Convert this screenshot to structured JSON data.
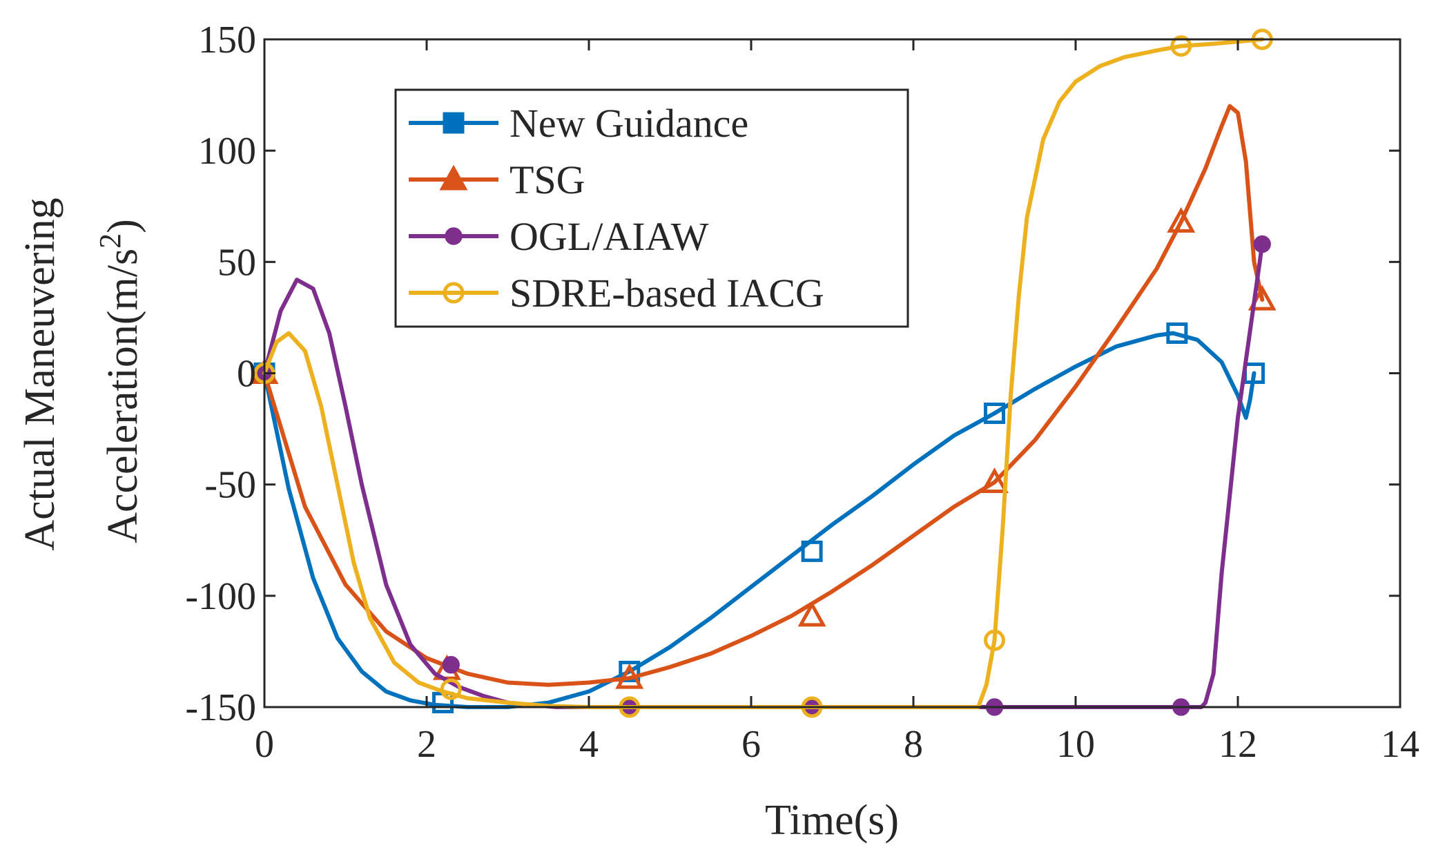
{
  "chart_data": {
    "type": "line",
    "title": "",
    "xlabel": "Time(s)",
    "ylabel_line1": "Actual Maneuvering",
    "ylabel_line2": "Acceleration(m/s",
    "ylabel_sup": "2",
    "ylabel_close": ")",
    "xlim": [
      0,
      14
    ],
    "ylim": [
      -150,
      150
    ],
    "xticks": [
      0,
      2,
      4,
      6,
      8,
      10,
      12,
      14
    ],
    "yticks": [
      150,
      100,
      50,
      0,
      -50,
      -100,
      -150
    ],
    "xtick_labels": [
      "0",
      "2",
      "4",
      "6",
      "8",
      "10",
      "12",
      "14"
    ],
    "ytick_labels": [
      "150",
      "100",
      "50",
      "0",
      "-50",
      "-100",
      "-150"
    ],
    "legend_position": "upper-left",
    "series": [
      {
        "name": "New Guidance",
        "color": "#0072BD",
        "marker": "square",
        "x": [
          0,
          0.3,
          0.6,
          0.9,
          1.2,
          1.5,
          1.8,
          2.1,
          2.5,
          3.0,
          3.5,
          4.0,
          4.5,
          5.0,
          5.5,
          6.0,
          6.5,
          7.0,
          7.5,
          8.0,
          8.5,
          9.0,
          9.5,
          10.0,
          10.5,
          11.0,
          11.2,
          11.5,
          11.8,
          12.0,
          12.1,
          12.15,
          12.2
        ],
        "y": [
          0,
          -52,
          -92,
          -119,
          -134,
          -143,
          -147,
          -149,
          -150,
          -150,
          -148,
          -143,
          -134,
          -123,
          -110,
          -96,
          -82,
          -68,
          -55,
          -41,
          -28,
          -18,
          -7,
          3,
          12,
          17,
          18,
          15,
          5,
          -10,
          -20,
          -12,
          0
        ],
        "marker_x": [
          0,
          2.2,
          4.5,
          6.75,
          9.0,
          11.25,
          12.2
        ],
        "marker_y": [
          0,
          -148,
          -134,
          -80,
          -18,
          18,
          0
        ]
      },
      {
        "name": "TSG",
        "color": "#D95319",
        "marker": "triangle",
        "x": [
          0,
          0.5,
          1.0,
          1.5,
          2.0,
          2.5,
          3.0,
          3.5,
          4.0,
          4.5,
          5.0,
          5.5,
          6.0,
          6.5,
          7.0,
          7.5,
          8.0,
          8.5,
          9.0,
          9.5,
          10.0,
          10.5,
          11.0,
          11.3,
          11.6,
          11.8,
          11.9,
          12.0,
          12.1,
          12.2,
          12.3
        ],
        "y": [
          0,
          -60,
          -95,
          -116,
          -128,
          -135,
          -139,
          -140,
          -139,
          -137,
          -132,
          -126,
          -118,
          -109,
          -98,
          -86,
          -73,
          -60,
          -49,
          -30,
          -6,
          20,
          47,
          68,
          92,
          111,
          120,
          117,
          95,
          50,
          33
        ],
        "marker_x": [
          0,
          2.25,
          4.5,
          6.75,
          9.0,
          11.3,
          12.3
        ],
        "marker_y": [
          0,
          -133,
          -137,
          -109,
          -49,
          68,
          33
        ]
      },
      {
        "name": "OGL/AIAW",
        "color": "#7E2F8E",
        "marker": "dot",
        "x": [
          0,
          0.2,
          0.4,
          0.6,
          0.8,
          1.0,
          1.2,
          1.5,
          1.8,
          2.1,
          2.4,
          2.7,
          3.0,
          3.3,
          3.6,
          4.0,
          4.5,
          5.0,
          6.0,
          7.0,
          8.0,
          9.0,
          10.0,
          11.0,
          11.3,
          11.55,
          11.6,
          11.7,
          11.8,
          12.0,
          12.3
        ],
        "y": [
          0,
          28,
          42,
          38,
          18,
          -15,
          -50,
          -95,
          -122,
          -135,
          -141,
          -145,
          -148,
          -149,
          -150,
          -150,
          -150,
          -150,
          -150,
          -150,
          -150,
          -150,
          -150,
          -150,
          -150,
          -150,
          -148,
          -135,
          -90,
          -20,
          58
        ],
        "marker_x": [
          0,
          2.3,
          4.5,
          6.75,
          9.0,
          11.3,
          12.3
        ],
        "marker_y": [
          0,
          -131,
          -150,
          -150,
          -150,
          -150,
          58
        ]
      },
      {
        "name": "SDRE-based IACG",
        "color": "#EDB120",
        "marker": "circle",
        "x": [
          0,
          0.15,
          0.3,
          0.5,
          0.7,
          0.9,
          1.1,
          1.3,
          1.6,
          1.9,
          2.2,
          2.5,
          3.0,
          3.5,
          4.0,
          4.5,
          5.0,
          6.0,
          7.0,
          8.0,
          8.8,
          8.9,
          9.0,
          9.1,
          9.2,
          9.3,
          9.4,
          9.6,
          9.8,
          10.0,
          10.3,
          10.6,
          11.0,
          11.3,
          11.7,
          12.0,
          12.3
        ],
        "y": [
          0,
          14,
          18,
          10,
          -15,
          -50,
          -85,
          -110,
          -130,
          -139,
          -143,
          -146,
          -148,
          -149.5,
          -150,
          -150,
          -150,
          -150,
          -150,
          -150,
          -150,
          -140,
          -120,
          -70,
          -10,
          35,
          70,
          105,
          122,
          131,
          138,
          142,
          145,
          147,
          148,
          149,
          150
        ],
        "marker_x": [
          0,
          2.3,
          4.5,
          6.75,
          9.0,
          11.3,
          12.3
        ],
        "marker_y": [
          0,
          -142,
          -150,
          -150,
          -120,
          147,
          150
        ]
      }
    ]
  }
}
